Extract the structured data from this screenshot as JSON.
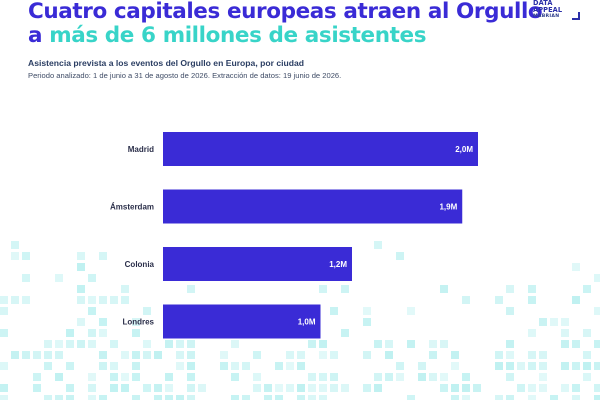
{
  "header": {
    "title_part1": "Cuatro capitales europeas atraen al Orgullo a ",
    "title_highlight": "más de 6 millones de asistentes",
    "subtitle": "Asistencia prevista a los eventos del Orgullo en Europa, por ciudad",
    "note": "Periodo analizado: 1 de junio a 31 de agosto de 2026. Extracción de datos: 19 junio de 2026."
  },
  "logo": {
    "line1": "DATA",
    "line2": "APPEAL",
    "line3": "MABRIAN"
  },
  "colors": {
    "title": "#3a2bd6",
    "highlight": "#38d4c8",
    "bar": "#3a2bd6",
    "decor": "#bff1f1"
  },
  "chart_data": {
    "type": "bar",
    "orientation": "horizontal",
    "title": "Asistencia prevista a los eventos del Orgullo en Europa, por ciudad",
    "categories": [
      "Madrid",
      "Ámsterdam",
      "Colonia",
      "Londres"
    ],
    "values": [
      2.0,
      1.9,
      1.2,
      1.0
    ],
    "value_labels": [
      "2,0M",
      "1,9M",
      "1,2M",
      "1,0M"
    ],
    "unit": "millones",
    "xlim": [
      0,
      2.0
    ],
    "grid": false,
    "legend": "none"
  }
}
